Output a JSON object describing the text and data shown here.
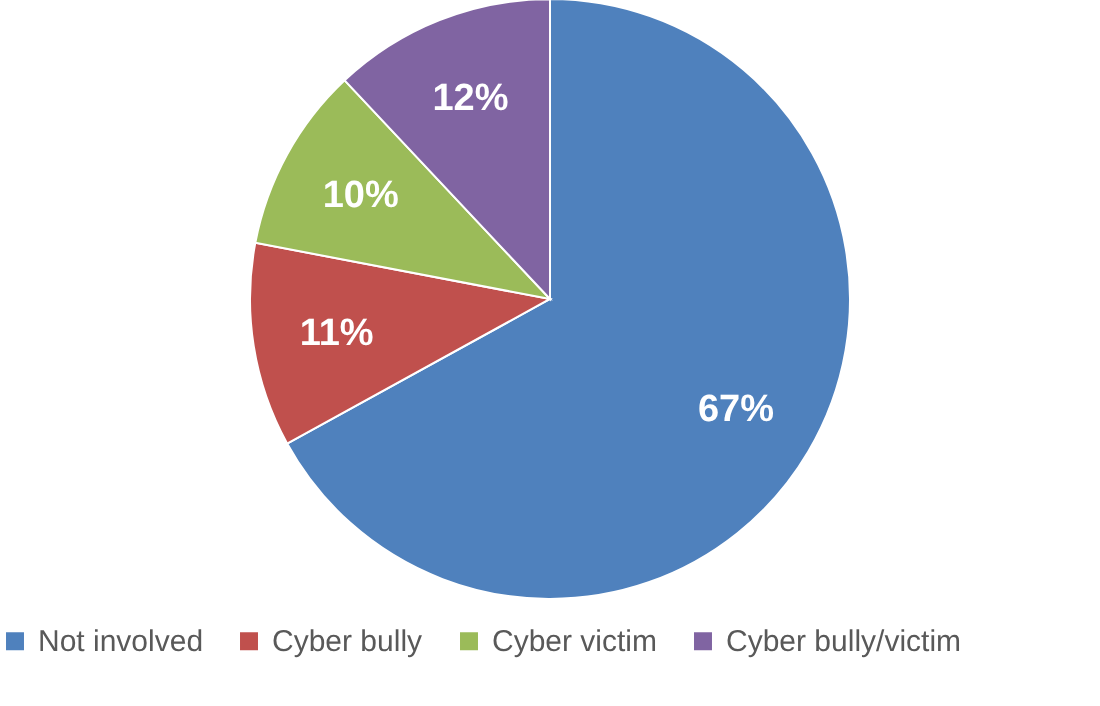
{
  "chart_data": {
    "type": "pie",
    "categories": [
      "Not involved",
      "Cyber bully",
      "Cyber victim",
      "Cyber bully/victim"
    ],
    "values": [
      67,
      11,
      10,
      12
    ],
    "value_labels": [
      "67%",
      "11%",
      "10%",
      "12%"
    ],
    "colors": [
      "#4f81bd",
      "#c0504d",
      "#9bbb59",
      "#8064a2"
    ],
    "legend": "bottom"
  }
}
